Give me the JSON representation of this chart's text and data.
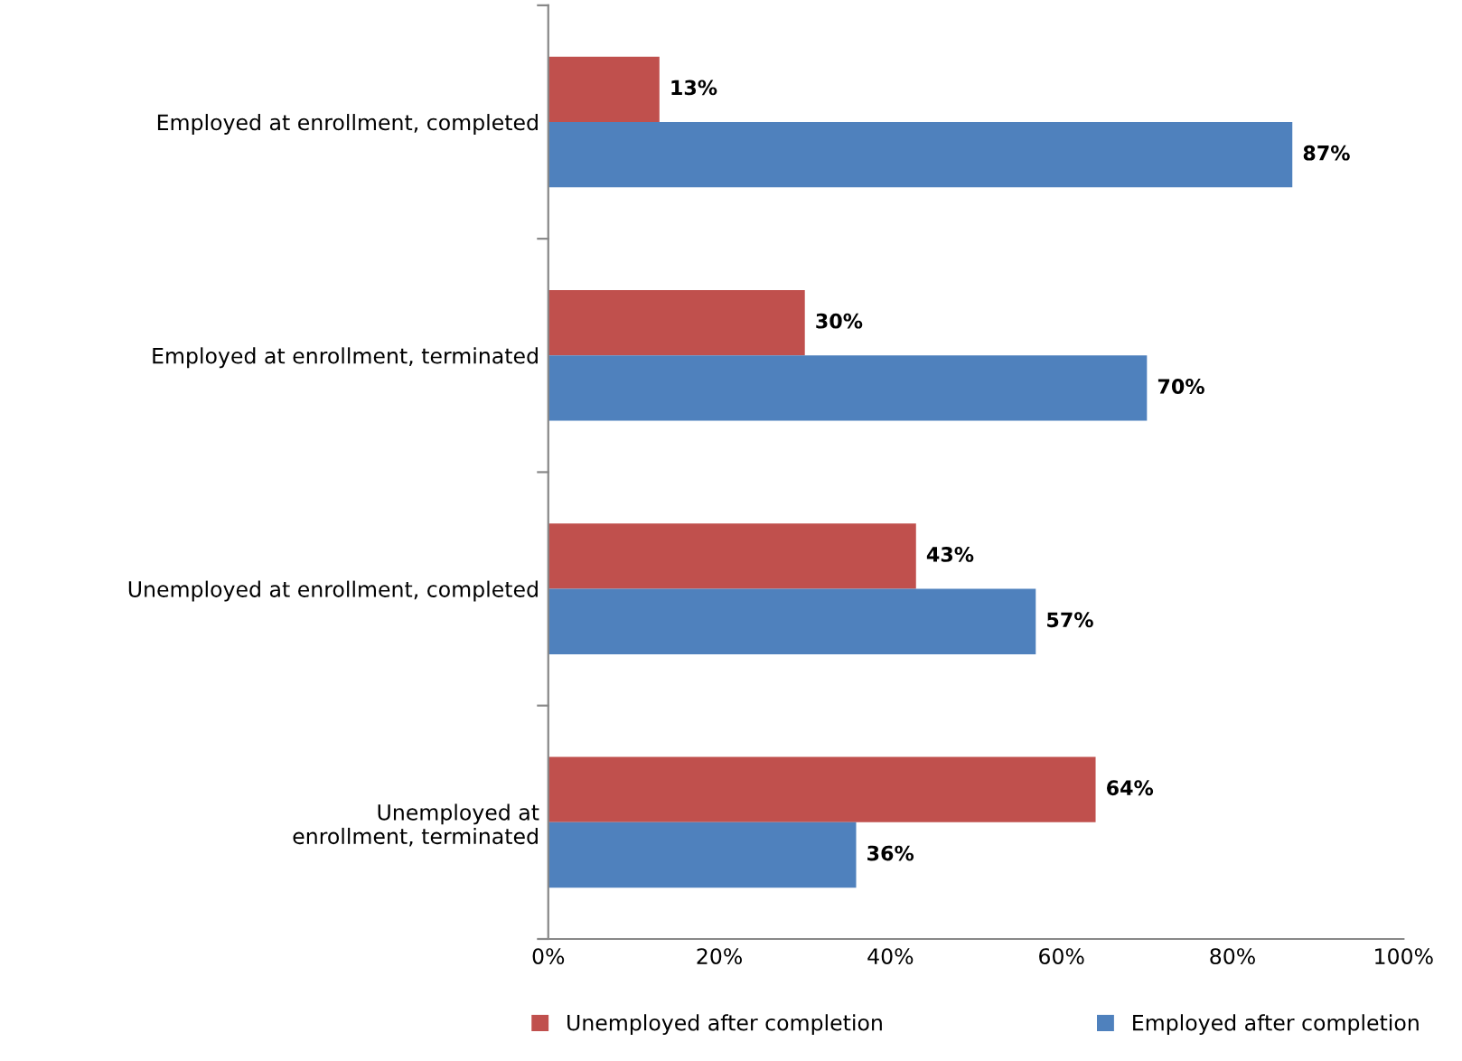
{
  "chart_data": {
    "type": "bar",
    "orientation": "horizontal",
    "categories": [
      "Employed at enrollment, completed",
      "Employed at enrollment, terminated",
      "Unemployed at enrollment, completed",
      "Unemployed at\nenrollment, terminated"
    ],
    "series": [
      {
        "name": "Unemployed after completion",
        "color": "#c0504d",
        "values": [
          13,
          30,
          43,
          64
        ],
        "value_labels": [
          "13%",
          "30%",
          "43%",
          "64%"
        ]
      },
      {
        "name": "Employed after completion",
        "color": "#4f81bd",
        "values": [
          87,
          70,
          57,
          36
        ],
        "value_labels": [
          "87%",
          "70%",
          "57%",
          "36%"
        ]
      }
    ],
    "xlim": [
      0,
      100
    ],
    "xticks": [
      {
        "value": 0,
        "label": "0%"
      },
      {
        "value": 20,
        "label": "20%"
      },
      {
        "value": 40,
        "label": "40%"
      },
      {
        "value": 60,
        "label": "60%"
      },
      {
        "value": 80,
        "label": "80%"
      },
      {
        "value": 100,
        "label": "100%"
      }
    ],
    "grid": false,
    "legend": "bottom"
  }
}
